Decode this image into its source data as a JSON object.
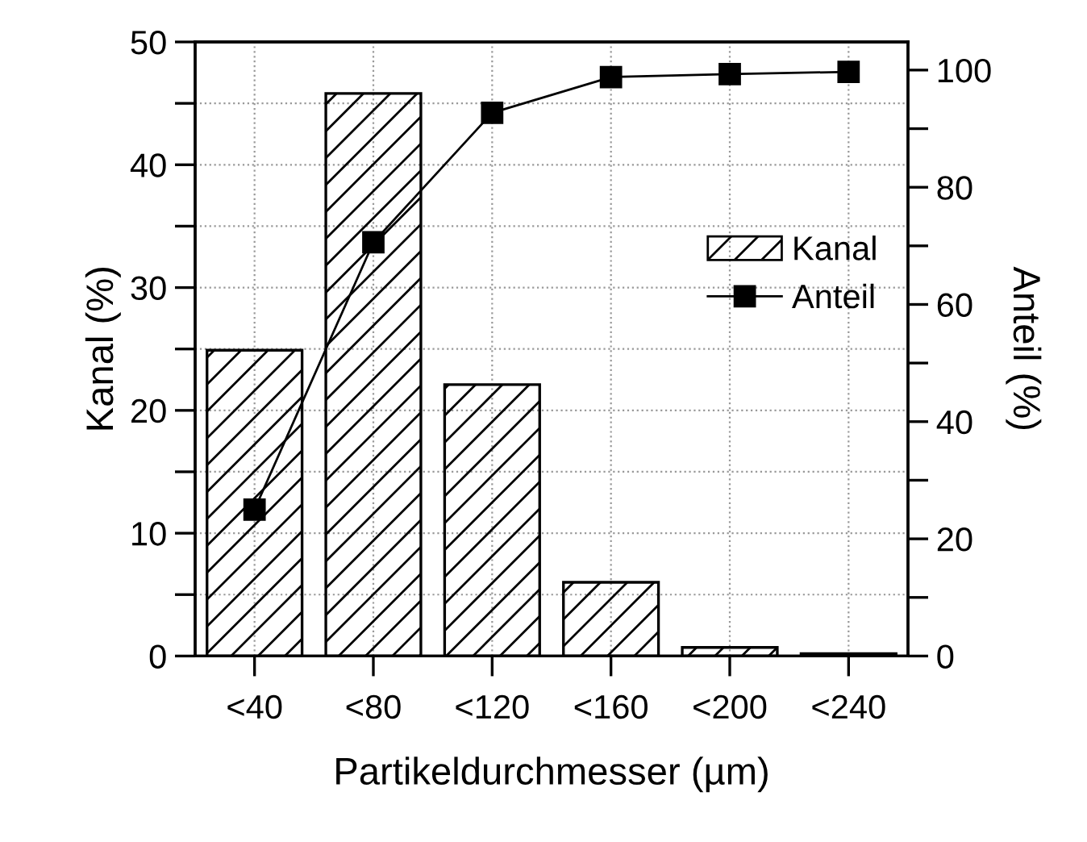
{
  "chart_data": {
    "type": "bar",
    "xlabel": "Partikeldurchmesser (µm)",
    "ylabel": "Kanal (%)",
    "y2label": "Anteil (%)",
    "categories": [
      "<40",
      "<80",
      "<120",
      "<160",
      "<200",
      "<240"
    ],
    "series": [
      {
        "name": "Kanal",
        "color": "#000000",
        "values": [
          24.9,
          45.8,
          22.1,
          6.0,
          0.7,
          0.2
        ]
      },
      {
        "name": "Anteil",
        "type": "line",
        "axis": "y2",
        "color": "#000000",
        "marker": "square",
        "line_style": "solid",
        "values": [
          25.0,
          70.6,
          92.7,
          98.8,
          99.3,
          99.7
        ]
      }
    ],
    "ylim": [
      0,
      50
    ],
    "yticks": [
      0,
      {
        "value": 5,
        "label": null
      },
      10,
      {
        "value": 15,
        "label": null
      },
      20,
      {
        "value": 25,
        "label": null
      },
      30,
      {
        "value": 35,
        "label": null
      },
      40,
      {
        "value": 45,
        "label": null
      },
      50
    ],
    "y2lim": [
      0,
      104.8
    ],
    "y2ticks": [
      0,
      {
        "value": 10,
        "label": null
      },
      20,
      {
        "value": 30,
        "label": null
      },
      40,
      {
        "value": 50,
        "label": null
      },
      60,
      {
        "value": 70,
        "label": null
      },
      80,
      {
        "value": 90,
        "label": null
      },
      100
    ],
    "grid": true,
    "legend": "right"
  }
}
